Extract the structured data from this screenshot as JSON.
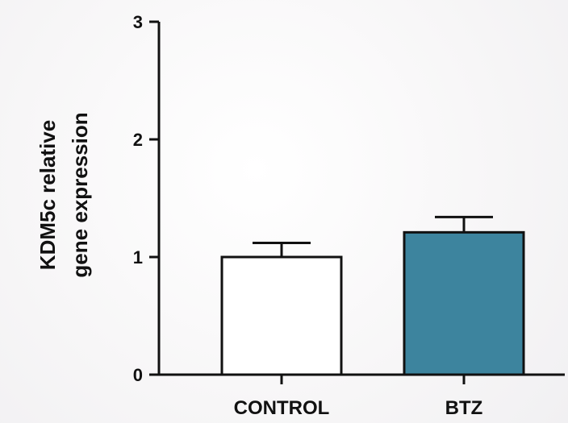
{
  "chart_data": {
    "type": "bar",
    "title": "",
    "xlabel": "",
    "ylabel_lines": [
      "KDM5c relative",
      "gene expression"
    ],
    "categories": [
      "CONTROL",
      "BTZ"
    ],
    "values": [
      1.0,
      1.21
    ],
    "errors": [
      0.12,
      0.13
    ],
    "bar_colors": [
      "#ffffff",
      "#3d849e"
    ],
    "edge_color": "#111111",
    "ylim": [
      0,
      3
    ],
    "yticks": [
      0,
      1,
      2,
      3
    ],
    "ytick_labels": [
      "0",
      "1",
      "2",
      "3"
    ],
    "grid": false,
    "legend": "none"
  }
}
